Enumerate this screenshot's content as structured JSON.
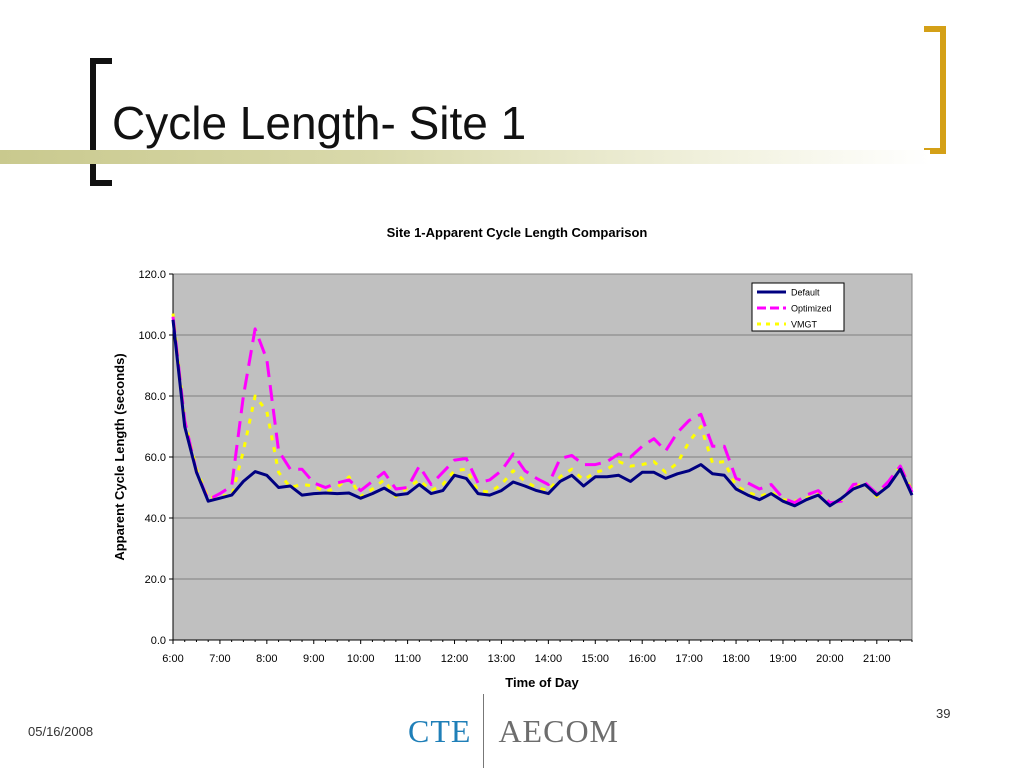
{
  "slide": {
    "title": "Cycle Length- Site 1",
    "date": "05/16/2008",
    "page_number": "39",
    "logo_left": "CTE",
    "logo_right": "AECOM"
  },
  "chart_data": {
    "type": "line",
    "title": "Site 1-Apparent Cycle Length Comparison",
    "xlabel": "Time of Day",
    "ylabel": "Apparent Cycle Length (seconds)",
    "ylim": [
      0,
      120
    ],
    "yticks": [
      "0.0",
      "20.0",
      "40.0",
      "60.0",
      "80.0",
      "100.0",
      "120.0"
    ],
    "xticks": [
      "6:00",
      "7:00",
      "8:00",
      "9:00",
      "10:00",
      "11:00",
      "12:00",
      "13:00",
      "14:00",
      "15:00",
      "16:00",
      "17:00",
      "18:00",
      "19:00",
      "20:00",
      "21:00"
    ],
    "grid": true,
    "plot_background": "#c0c0c0",
    "legend_position": "top-right",
    "x": [
      "6:00",
      "6:15",
      "6:30",
      "6:45",
      "7:00",
      "7:15",
      "7:30",
      "7:45",
      "8:00",
      "8:15",
      "8:30",
      "8:45",
      "9:00",
      "9:15",
      "9:30",
      "9:45",
      "10:00",
      "10:15",
      "10:30",
      "10:45",
      "11:00",
      "11:15",
      "11:30",
      "11:45",
      "12:00",
      "12:15",
      "12:30",
      "12:45",
      "13:00",
      "13:15",
      "13:30",
      "13:45",
      "14:00",
      "14:15",
      "14:30",
      "14:45",
      "15:00",
      "15:15",
      "15:30",
      "15:45",
      "16:00",
      "16:15",
      "16:30",
      "16:45",
      "17:00",
      "17:15",
      "17:30",
      "17:45",
      "18:00",
      "18:15",
      "18:30",
      "18:45",
      "19:00",
      "19:15",
      "19:30",
      "19:45",
      "20:00",
      "20:15",
      "20:30",
      "20:45",
      "21:00",
      "21:15",
      "21:30",
      "21:45"
    ],
    "series": [
      {
        "name": "Default",
        "color": "#000080",
        "dash": "solid",
        "values": [
          105,
          70,
          55,
          45.5,
          46.5,
          47.5,
          52,
          55.2,
          54,
          50,
          50.5,
          47.5,
          48,
          48.2,
          48,
          48.2,
          46.5,
          48,
          49.8,
          47.5,
          48,
          51,
          48,
          49,
          54,
          53,
          48,
          47.5,
          49,
          51.8,
          50.5,
          49,
          48,
          52,
          54,
          50.5,
          53.5,
          53.5,
          54,
          52,
          55,
          55,
          53,
          54.5,
          55.5,
          57.5,
          54.5,
          54,
          49.5,
          47.5,
          46,
          48,
          45.5,
          44,
          46,
          47.5,
          44,
          46.5,
          49.5,
          51,
          47.5,
          50.5,
          56,
          47.5
        ]
      },
      {
        "name": "Optimized",
        "color": "#ff00ff",
        "dash": "long",
        "values": [
          106,
          72,
          55,
          46,
          48,
          50.5,
          80,
          102,
          92,
          62,
          56,
          56,
          51.5,
          50,
          51.5,
          52.5,
          49,
          52,
          55,
          49.5,
          50,
          57,
          51,
          55,
          59,
          59.5,
          51.5,
          52.5,
          55.5,
          61,
          55.5,
          53,
          51,
          59.5,
          60.5,
          57.5,
          57.5,
          58.5,
          61,
          60,
          63.5,
          66,
          62,
          68,
          72,
          74,
          63.5,
          63.5,
          53,
          51.5,
          49.5,
          51,
          46.5,
          45,
          47.5,
          49,
          45,
          45.5,
          51,
          51.5,
          48,
          52,
          57,
          48.5
        ]
      },
      {
        "name": "VMGT",
        "color": "#ffff00",
        "dash": "short",
        "values": [
          107,
          72,
          56,
          46.5,
          47.5,
          47,
          62,
          80,
          75,
          55,
          50,
          51,
          50.5,
          48.5,
          50,
          53.5,
          47,
          49.5,
          52.5,
          47,
          50,
          52.5,
          49,
          51,
          55.5,
          56,
          49,
          48.5,
          51,
          55.5,
          52,
          50,
          49,
          53.5,
          56,
          52.5,
          55,
          56,
          58.5,
          57,
          57.5,
          58.5,
          55,
          58,
          65,
          70,
          58,
          58.5,
          50.5,
          48.5,
          47,
          48.5,
          46,
          45.5,
          46.5,
          48,
          45,
          46,
          50.5,
          51,
          47,
          51.5,
          57,
          49
        ]
      }
    ]
  }
}
